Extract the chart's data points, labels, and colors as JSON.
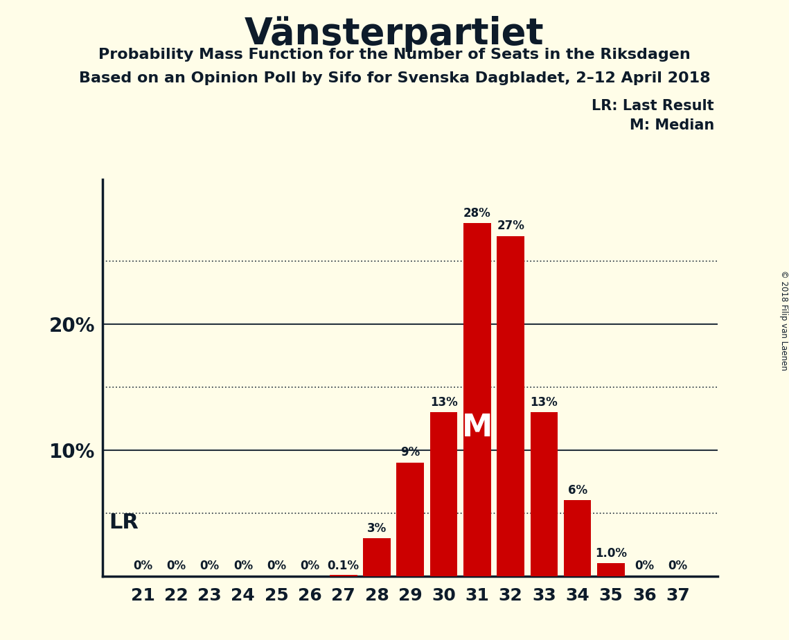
{
  "title": "Vänsterpartiet",
  "subtitle1": "Probability Mass Function for the Number of Seats in the Riksdagen",
  "subtitle2": "Based on an Opinion Poll by Sifo for Svenska Dagbladet, 2–12 April 2018",
  "copyright": "© 2018 Filip van Laenen",
  "seats": [
    21,
    22,
    23,
    24,
    25,
    26,
    27,
    28,
    29,
    30,
    31,
    32,
    33,
    34,
    35,
    36,
    37
  ],
  "probabilities": [
    0.0,
    0.0,
    0.0,
    0.0,
    0.0,
    0.0,
    0.001,
    0.03,
    0.09,
    0.13,
    0.28,
    0.27,
    0.13,
    0.06,
    0.01,
    0.0,
    0.0
  ],
  "bar_labels": [
    "0%",
    "0%",
    "0%",
    "0%",
    "0%",
    "0%",
    "0.1%",
    "3%",
    "9%",
    "13%",
    "28%",
    "27%",
    "13%",
    "6%",
    "1.0%",
    "0%",
    "0%"
  ],
  "bar_color": "#cc0000",
  "background_color": "#fffde8",
  "text_color": "#0d1b2a",
  "lr_seat": 21,
  "median_seat": 31,
  "ylim": [
    0,
    0.315
  ],
  "legend_lr": "LR: Last Result",
  "legend_m": "M: Median",
  "lr_label": "LR",
  "dotted_lines": [
    0.05,
    0.15,
    0.25
  ],
  "solid_lines": [
    0.1,
    0.2
  ],
  "ytick_vals": [
    0.1,
    0.2
  ],
  "ytick_labels": [
    "10%",
    "20%"
  ]
}
